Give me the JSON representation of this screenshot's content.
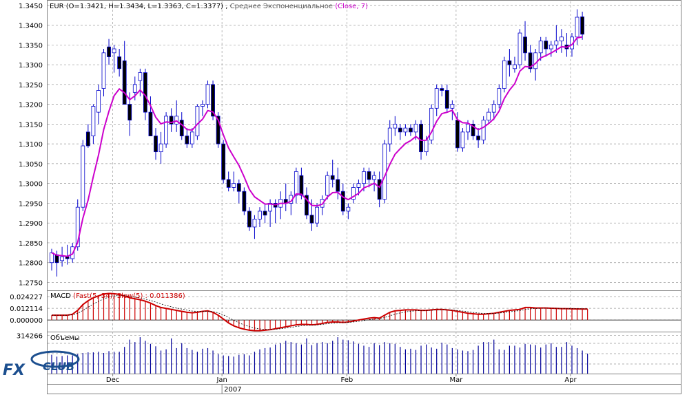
{
  "main": {
    "info_symbol": "EUR",
    "info_ohlc": "(O=1.3421, H=1.3434, L=1.3363, C=1.3377)",
    "info_sep": ",",
    "info_indicator": "Среднее Экспоненциальное",
    "info_indicator_params": "(Close, 7)",
    "y_ticks": [
      "1.3450",
      "1.3400",
      "1.3350",
      "1.3300",
      "1.3250",
      "1.3200",
      "1.3150",
      "1.3100",
      "1.3050",
      "1.3000",
      "1.2950",
      "1.2900",
      "1.2850",
      "1.2800",
      "1.2750"
    ]
  },
  "macd": {
    "title": "MACD",
    "params": "(Fast(5, 34), Slow(5) : 0.011386)",
    "y_ticks": [
      "0.024227",
      "0.012114",
      "0.000000"
    ]
  },
  "volume": {
    "title": "Объемы",
    "y_ticks": [
      "314266"
    ]
  },
  "x_axis": {
    "month_labels": [
      "Dec",
      "Jan",
      "Feb",
      "Mar",
      "Apr"
    ],
    "year_label": "2007"
  },
  "logo": {
    "text": "FXCLUB"
  },
  "colors": {
    "bull_body": "#ffffff",
    "bear_body": "#000000",
    "candle_outline": "#0000cc",
    "ema": "#cc00cc",
    "macd_hist": "#cc0000",
    "macd_signal": "#000000",
    "volume": "#000099",
    "grid": "#999999"
  },
  "chart_data": {
    "type": "candlestick",
    "price_range": [
      1.273,
      1.346
    ],
    "candles": [
      {
        "o": 1.28,
        "h": 1.2835,
        "l": 1.278,
        "c": 1.2825
      },
      {
        "o": 1.282,
        "h": 1.283,
        "l": 1.2765,
        "c": 1.28
      },
      {
        "o": 1.2805,
        "h": 1.284,
        "l": 1.279,
        "c": 1.2815
      },
      {
        "o": 1.2815,
        "h": 1.2845,
        "l": 1.2795,
        "c": 1.281
      },
      {
        "o": 1.281,
        "h": 1.285,
        "l": 1.28,
        "c": 1.284
      },
      {
        "o": 1.284,
        "h": 1.296,
        "l": 1.283,
        "c": 1.294
      },
      {
        "o": 1.294,
        "h": 1.311,
        "l": 1.293,
        "c": 1.3095
      },
      {
        "o": 1.313,
        "h": 1.315,
        "l": 1.309,
        "c": 1.3095
      },
      {
        "o": 1.312,
        "h": 1.32,
        "l": 1.31,
        "c": 1.3195
      },
      {
        "o": 1.318,
        "h": 1.325,
        "l": 1.315,
        "c": 1.3235
      },
      {
        "o": 1.324,
        "h": 1.334,
        "l": 1.322,
        "c": 1.333
      },
      {
        "o": 1.3345,
        "h": 1.3365,
        "l": 1.33,
        "c": 1.332
      },
      {
        "o": 1.333,
        "h": 1.335,
        "l": 1.328,
        "c": 1.334
      },
      {
        "o": 1.332,
        "h": 1.334,
        "l": 1.327,
        "c": 1.329
      },
      {
        "o": 1.331,
        "h": 1.336,
        "l": 1.32,
        "c": 1.32
      },
      {
        "o": 1.32,
        "h": 1.323,
        "l": 1.312,
        "c": 1.316
      },
      {
        "o": 1.323,
        "h": 1.327,
        "l": 1.321,
        "c": 1.325
      },
      {
        "o": 1.326,
        "h": 1.329,
        "l": 1.322,
        "c": 1.328
      },
      {
        "o": 1.328,
        "h": 1.329,
        "l": 1.316,
        "c": 1.318
      },
      {
        "o": 1.318,
        "h": 1.322,
        "l": 1.312,
        "c": 1.312
      },
      {
        "o": 1.312,
        "h": 1.314,
        "l": 1.306,
        "c": 1.308
      },
      {
        "o": 1.308,
        "h": 1.313,
        "l": 1.305,
        "c": 1.31
      },
      {
        "o": 1.31,
        "h": 1.318,
        "l": 1.309,
        "c": 1.317
      },
      {
        "o": 1.317,
        "h": 1.319,
        "l": 1.313,
        "c": 1.315
      },
      {
        "o": 1.315,
        "h": 1.321,
        "l": 1.313,
        "c": 1.317
      },
      {
        "o": 1.316,
        "h": 1.318,
        "l": 1.311,
        "c": 1.312
      },
      {
        "o": 1.312,
        "h": 1.314,
        "l": 1.309,
        "c": 1.31
      },
      {
        "o": 1.31,
        "h": 1.314,
        "l": 1.309,
        "c": 1.313
      },
      {
        "o": 1.312,
        "h": 1.32,
        "l": 1.311,
        "c": 1.3195
      },
      {
        "o": 1.3195,
        "h": 1.321,
        "l": 1.317,
        "c": 1.32
      },
      {
        "o": 1.32,
        "h": 1.326,
        "l": 1.319,
        "c": 1.325
      },
      {
        "o": 1.325,
        "h": 1.326,
        "l": 1.316,
        "c": 1.317
      },
      {
        "o": 1.317,
        "h": 1.318,
        "l": 1.309,
        "c": 1.31
      },
      {
        "o": 1.31,
        "h": 1.311,
        "l": 1.3,
        "c": 1.301
      },
      {
        "o": 1.301,
        "h": 1.303,
        "l": 1.298,
        "c": 1.299
      },
      {
        "o": 1.299,
        "h": 1.303,
        "l": 1.298,
        "c": 1.3
      },
      {
        "o": 1.3,
        "h": 1.301,
        "l": 1.295,
        "c": 1.298
      },
      {
        "o": 1.298,
        "h": 1.299,
        "l": 1.292,
        "c": 1.293
      },
      {
        "o": 1.293,
        "h": 1.294,
        "l": 1.288,
        "c": 1.289
      },
      {
        "o": 1.289,
        "h": 1.292,
        "l": 1.286,
        "c": 1.291
      },
      {
        "o": 1.291,
        "h": 1.294,
        "l": 1.289,
        "c": 1.293
      },
      {
        "o": 1.293,
        "h": 1.295,
        "l": 1.29,
        "c": 1.292
      },
      {
        "o": 1.293,
        "h": 1.296,
        "l": 1.289,
        "c": 1.295
      },
      {
        "o": 1.295,
        "h": 1.296,
        "l": 1.29,
        "c": 1.294
      },
      {
        "o": 1.294,
        "h": 1.298,
        "l": 1.291,
        "c": 1.296
      },
      {
        "o": 1.296,
        "h": 1.3,
        "l": 1.293,
        "c": 1.295
      },
      {
        "o": 1.295,
        "h": 1.298,
        "l": 1.292,
        "c": 1.297
      },
      {
        "o": 1.297,
        "h": 1.304,
        "l": 1.295,
        "c": 1.303
      },
      {
        "o": 1.302,
        "h": 1.304,
        "l": 1.296,
        "c": 1.297
      },
      {
        "o": 1.297,
        "h": 1.299,
        "l": 1.291,
        "c": 1.292
      },
      {
        "o": 1.292,
        "h": 1.296,
        "l": 1.288,
        "c": 1.29
      },
      {
        "o": 1.29,
        "h": 1.295,
        "l": 1.289,
        "c": 1.294
      },
      {
        "o": 1.294,
        "h": 1.297,
        "l": 1.292,
        "c": 1.296
      },
      {
        "o": 1.297,
        "h": 1.303,
        "l": 1.296,
        "c": 1.302
      },
      {
        "o": 1.302,
        "h": 1.306,
        "l": 1.299,
        "c": 1.301
      },
      {
        "o": 1.301,
        "h": 1.304,
        "l": 1.296,
        "c": 1.298
      },
      {
        "o": 1.298,
        "h": 1.3,
        "l": 1.292,
        "c": 1.293
      },
      {
        "o": 1.293,
        "h": 1.295,
        "l": 1.291,
        "c": 1.294
      },
      {
        "o": 1.296,
        "h": 1.3,
        "l": 1.295,
        "c": 1.299
      },
      {
        "o": 1.299,
        "h": 1.301,
        "l": 1.297,
        "c": 1.3
      },
      {
        "o": 1.3,
        "h": 1.304,
        "l": 1.298,
        "c": 1.303
      },
      {
        "o": 1.303,
        "h": 1.304,
        "l": 1.299,
        "c": 1.301
      },
      {
        "o": 1.301,
        "h": 1.303,
        "l": 1.298,
        "c": 1.302
      },
      {
        "o": 1.301,
        "h": 1.303,
        "l": 1.294,
        "c": 1.296
      },
      {
        "o": 1.296,
        "h": 1.311,
        "l": 1.295,
        "c": 1.31
      },
      {
        "o": 1.31,
        "h": 1.316,
        "l": 1.308,
        "c": 1.314
      },
      {
        "o": 1.314,
        "h": 1.317,
        "l": 1.312,
        "c": 1.315
      },
      {
        "o": 1.314,
        "h": 1.315,
        "l": 1.311,
        "c": 1.313
      },
      {
        "o": 1.313,
        "h": 1.315,
        "l": 1.312,
        "c": 1.314
      },
      {
        "o": 1.314,
        "h": 1.315,
        "l": 1.312,
        "c": 1.313
      },
      {
        "o": 1.313,
        "h": 1.316,
        "l": 1.311,
        "c": 1.315
      },
      {
        "o": 1.315,
        "h": 1.316,
        "l": 1.306,
        "c": 1.308
      },
      {
        "o": 1.308,
        "h": 1.312,
        "l": 1.307,
        "c": 1.311
      },
      {
        "o": 1.311,
        "h": 1.32,
        "l": 1.31,
        "c": 1.319
      },
      {
        "o": 1.319,
        "h": 1.325,
        "l": 1.317,
        "c": 1.324
      },
      {
        "o": 1.324,
        "h": 1.325,
        "l": 1.322,
        "c": 1.3235
      },
      {
        "o": 1.3235,
        "h": 1.325,
        "l": 1.318,
        "c": 1.319
      },
      {
        "o": 1.319,
        "h": 1.321,
        "l": 1.316,
        "c": 1.32
      },
      {
        "o": 1.316,
        "h": 1.318,
        "l": 1.308,
        "c": 1.309
      },
      {
        "o": 1.309,
        "h": 1.314,
        "l": 1.308,
        "c": 1.313
      },
      {
        "o": 1.313,
        "h": 1.316,
        "l": 1.311,
        "c": 1.315
      },
      {
        "o": 1.315,
        "h": 1.316,
        "l": 1.311,
        "c": 1.312
      },
      {
        "o": 1.312,
        "h": 1.314,
        "l": 1.309,
        "c": 1.311
      },
      {
        "o": 1.311,
        "h": 1.317,
        "l": 1.31,
        "c": 1.316
      },
      {
        "o": 1.316,
        "h": 1.319,
        "l": 1.315,
        "c": 1.318
      },
      {
        "o": 1.318,
        "h": 1.321,
        "l": 1.316,
        "c": 1.32
      },
      {
        "o": 1.32,
        "h": 1.325,
        "l": 1.319,
        "c": 1.324
      },
      {
        "o": 1.324,
        "h": 1.332,
        "l": 1.323,
        "c": 1.331
      },
      {
        "o": 1.331,
        "h": 1.334,
        "l": 1.327,
        "c": 1.33
      },
      {
        "o": 1.329,
        "h": 1.332,
        "l": 1.328,
        "c": 1.33
      },
      {
        "o": 1.33,
        "h": 1.339,
        "l": 1.329,
        "c": 1.338
      },
      {
        "o": 1.337,
        "h": 1.341,
        "l": 1.331,
        "c": 1.333
      },
      {
        "o": 1.333,
        "h": 1.335,
        "l": 1.328,
        "c": 1.329
      },
      {
        "o": 1.329,
        "h": 1.334,
        "l": 1.326,
        "c": 1.333
      },
      {
        "o": 1.333,
        "h": 1.337,
        "l": 1.331,
        "c": 1.336
      },
      {
        "o": 1.336,
        "h": 1.337,
        "l": 1.332,
        "c": 1.334
      },
      {
        "o": 1.334,
        "h": 1.336,
        "l": 1.332,
        "c": 1.335
      },
      {
        "o": 1.335,
        "h": 1.34,
        "l": 1.333,
        "c": 1.336
      },
      {
        "o": 1.336,
        "h": 1.339,
        "l": 1.333,
        "c": 1.337
      },
      {
        "o": 1.335,
        "h": 1.338,
        "l": 1.332,
        "c": 1.334
      },
      {
        "o": 1.334,
        "h": 1.338,
        "l": 1.332,
        "c": 1.337
      },
      {
        "o": 1.337,
        "h": 1.344,
        "l": 1.335,
        "c": 1.342
      },
      {
        "o": 1.3421,
        "h": 1.3434,
        "l": 1.3363,
        "c": 1.3377
      }
    ],
    "ema_period": 7,
    "macd_range": [
      -0.012,
      0.03
    ],
    "macd_hist": [
      0.005,
      0.005,
      0.005,
      0.005,
      0.006,
      0.01,
      0.016,
      0.02,
      0.023,
      0.025,
      0.027,
      0.0275,
      0.0272,
      0.0265,
      0.025,
      0.023,
      0.022,
      0.021,
      0.0195,
      0.0175,
      0.015,
      0.013,
      0.012,
      0.011,
      0.01,
      0.009,
      0.008,
      0.0075,
      0.008,
      0.009,
      0.0095,
      0.008,
      0.005,
      0.001,
      -0.003,
      -0.006,
      -0.008,
      -0.0095,
      -0.0105,
      -0.011,
      -0.011,
      -0.0105,
      -0.01,
      -0.009,
      -0.008,
      -0.007,
      -0.006,
      -0.005,
      -0.0045,
      -0.0045,
      -0.005,
      -0.0045,
      -0.0035,
      -0.0025,
      -0.002,
      -0.002,
      -0.0025,
      -0.002,
      -0.001,
      0.0,
      0.001,
      0.002,
      0.0025,
      0.002,
      0.005,
      0.008,
      0.0095,
      0.01,
      0.0105,
      0.0105,
      0.0105,
      0.01,
      0.01,
      0.0105,
      0.011,
      0.011,
      0.0105,
      0.01,
      0.009,
      0.008,
      0.007,
      0.0065,
      0.006,
      0.006,
      0.0065,
      0.007,
      0.008,
      0.009,
      0.01,
      0.0105,
      0.011,
      0.013,
      0.013,
      0.0125,
      0.0125,
      0.0125,
      0.0122,
      0.012,
      0.0118,
      0.0118,
      0.0116,
      0.0115,
      0.0114,
      0.0114
    ],
    "volume_range": [
      0,
      340000
    ],
    "volumes": [
      155000,
      140000,
      145000,
      150000,
      150000,
      160000,
      170000,
      175000,
      175000,
      180000,
      170000,
      185000,
      180000,
      180000,
      220000,
      280000,
      260000,
      300000,
      270000,
      245000,
      225000,
      190000,
      200000,
      290000,
      210000,
      250000,
      210000,
      195000,
      180000,
      205000,
      210000,
      190000,
      160000,
      150000,
      145000,
      140000,
      155000,
      160000,
      150000,
      180000,
      200000,
      210000,
      215000,
      240000,
      250000,
      270000,
      260000,
      250000,
      240000,
      290000,
      235000,
      250000,
      260000,
      250000,
      270000,
      300000,
      280000,
      275000,
      265000,
      245000,
      230000,
      220000,
      250000,
      235000,
      260000,
      250000,
      245000,
      220000,
      200000,
      205000,
      195000,
      230000,
      240000,
      215000,
      205000,
      255000,
      240000,
      210000,
      200000,
      190000,
      185000,
      195000,
      230000,
      260000,
      260000,
      280000,
      200000,
      195000,
      230000,
      230000,
      215000,
      245000,
      240000,
      235000,
      215000,
      240000,
      250000,
      220000,
      220000,
      260000,
      230000,
      210000,
      190000,
      165000
    ]
  }
}
